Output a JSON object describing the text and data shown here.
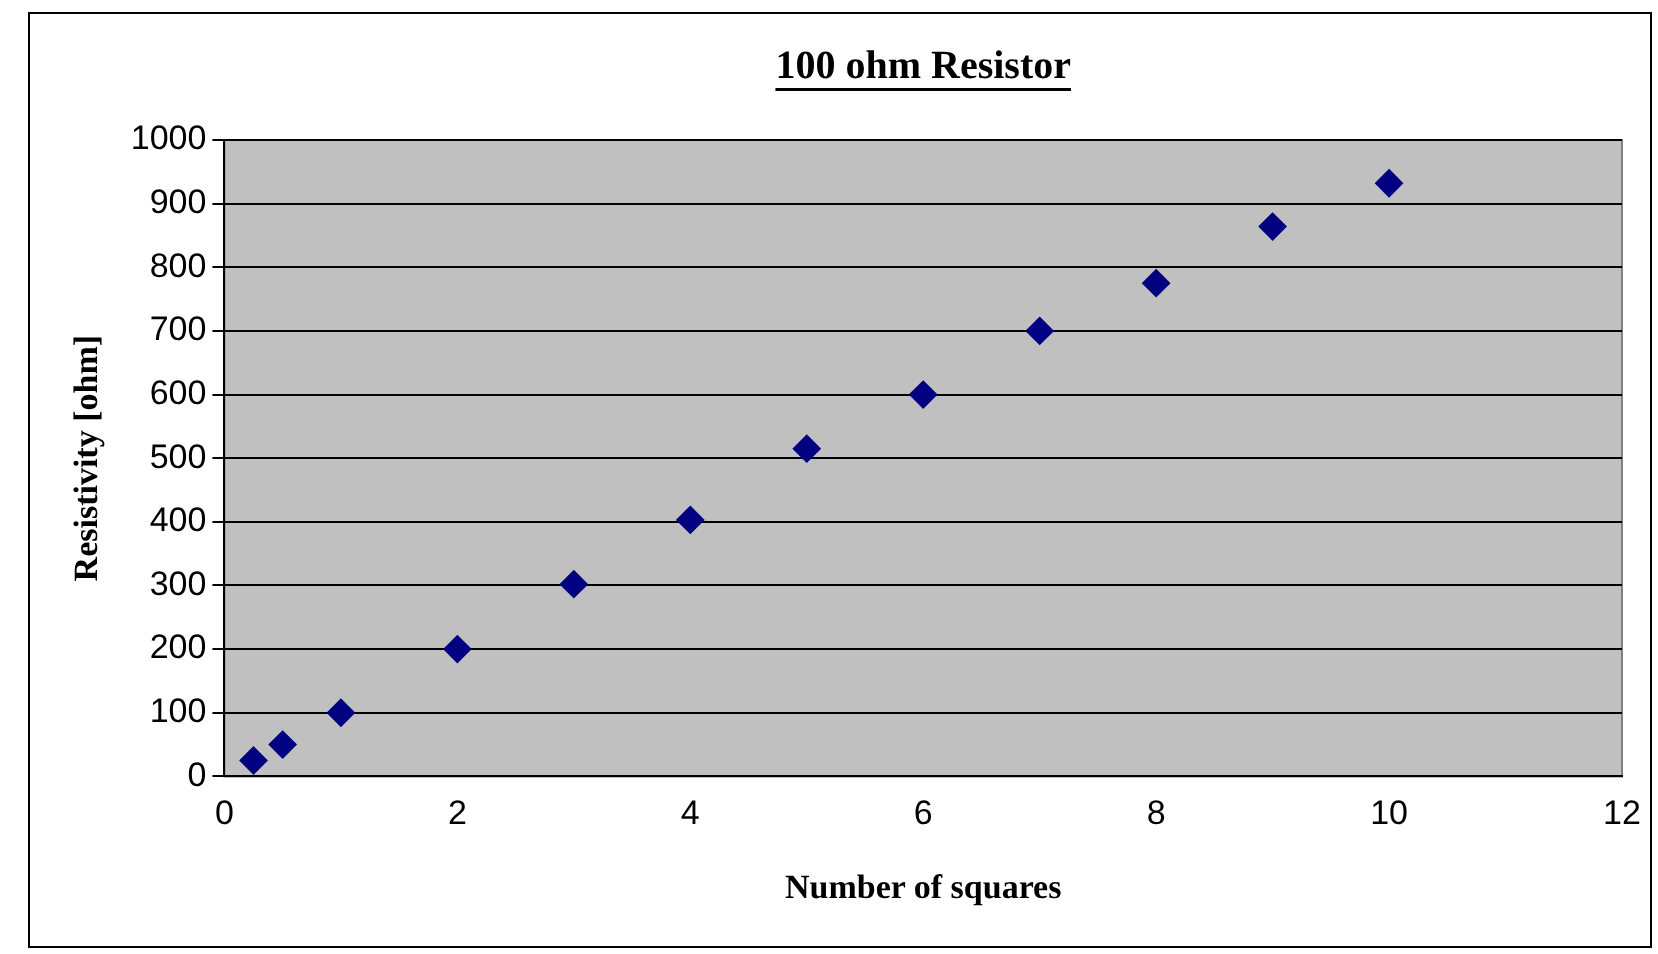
{
  "chart_data": {
    "type": "scatter",
    "title": "100 ohm Resistor",
    "xlabel": "Number of squares",
    "ylabel": "Resistivity [ohm]",
    "x": [
      0.25,
      0.5,
      1,
      2,
      3,
      4,
      5,
      6,
      7,
      8,
      9,
      10
    ],
    "series": [
      {
        "color": "#000080",
        "values": [
          25,
          50,
          100,
          200,
          302,
          403,
          515,
          600,
          700,
          775,
          864,
          932
        ]
      }
    ],
    "xlim": [
      0,
      12
    ],
    "xticks": [
      0,
      2,
      4,
      6,
      8,
      10,
      12
    ],
    "ylim": [
      0,
      1000
    ],
    "yticks": [
      0,
      100,
      200,
      300,
      400,
      500,
      600,
      700,
      800,
      900,
      1000
    ],
    "grid": "y",
    "legend": false,
    "marker": "diamond"
  }
}
